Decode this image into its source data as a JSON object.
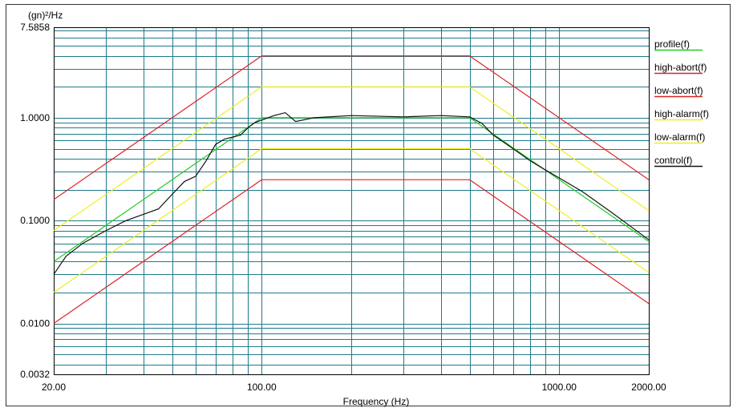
{
  "chart_data": {
    "type": "line",
    "ylabel": "(gn)²/Hz",
    "xlabel": "Frequency (Hz)",
    "x_scale": "log",
    "y_scale": "log",
    "xlim": [
      20,
      2000
    ],
    "ylim": [
      0.0032,
      7.5858
    ],
    "x_ticks": [
      {
        "value": 20,
        "label": "20.00"
      },
      {
        "value": 100,
        "label": "100.00"
      },
      {
        "value": 1000,
        "label": "1000.00"
      },
      {
        "value": 2000,
        "label": "2000.00"
      }
    ],
    "y_ticks": [
      {
        "value": 7.5858,
        "label": "7.5858"
      },
      {
        "value": 1.0,
        "label": "1.0000"
      },
      {
        "value": 0.1,
        "label": "0.1000"
      },
      {
        "value": 0.01,
        "label": "0.0100"
      },
      {
        "value": 0.0032,
        "label": "0.0032"
      }
    ],
    "grid": true,
    "legend_position": "right",
    "series": [
      {
        "name": "profile(f)",
        "color": "#22cc22",
        "points": [
          [
            20,
            0.04
          ],
          [
            100,
            1.0
          ],
          [
            500,
            1.0
          ],
          [
            2000,
            0.0625
          ]
        ]
      },
      {
        "name": "high-abort(f)",
        "color": "#dd2222",
        "points": [
          [
            20,
            0.16
          ],
          [
            100,
            4.0
          ],
          [
            500,
            4.0
          ],
          [
            2000,
            0.25
          ]
        ]
      },
      {
        "name": "low-abort(f)",
        "color": "#dd2222",
        "points": [
          [
            20,
            0.01
          ],
          [
            100,
            0.25
          ],
          [
            500,
            0.25
          ],
          [
            2000,
            0.0156
          ]
        ]
      },
      {
        "name": "high-alarm(f)",
        "color": "#eeee22",
        "points": [
          [
            20,
            0.08
          ],
          [
            100,
            2.0
          ],
          [
            500,
            2.0
          ],
          [
            2000,
            0.125
          ]
        ]
      },
      {
        "name": "low-alarm(f)",
        "color": "#eeee22",
        "points": [
          [
            20,
            0.02
          ],
          [
            100,
            0.5
          ],
          [
            500,
            0.5
          ],
          [
            2000,
            0.03125
          ]
        ]
      },
      {
        "name": "control(f)",
        "color": "#111111",
        "points": [
          [
            20,
            0.03
          ],
          [
            22,
            0.045
          ],
          [
            25,
            0.06
          ],
          [
            30,
            0.08
          ],
          [
            35,
            0.1
          ],
          [
            40,
            0.115
          ],
          [
            45,
            0.13
          ],
          [
            50,
            0.18
          ],
          [
            55,
            0.24
          ],
          [
            60,
            0.27
          ],
          [
            65,
            0.38
          ],
          [
            70,
            0.55
          ],
          [
            75,
            0.62
          ],
          [
            80,
            0.65
          ],
          [
            85,
            0.68
          ],
          [
            90,
            0.8
          ],
          [
            95,
            0.9
          ],
          [
            100,
            0.95
          ],
          [
            110,
            1.05
          ],
          [
            120,
            1.12
          ],
          [
            130,
            0.92
          ],
          [
            150,
            1.0
          ],
          [
            200,
            1.05
          ],
          [
            300,
            1.02
          ],
          [
            400,
            1.05
          ],
          [
            500,
            1.02
          ],
          [
            550,
            0.88
          ],
          [
            600,
            0.68
          ],
          [
            700,
            0.5
          ],
          [
            800,
            0.38
          ],
          [
            900,
            0.31
          ],
          [
            1000,
            0.26
          ],
          [
            1200,
            0.19
          ],
          [
            1500,
            0.12
          ],
          [
            2000,
            0.065
          ]
        ]
      }
    ]
  }
}
